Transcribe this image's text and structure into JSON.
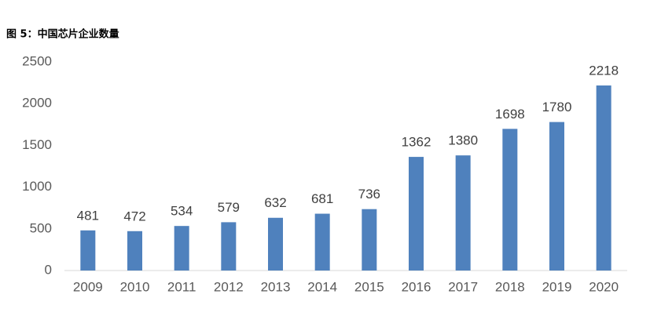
{
  "chart_data": {
    "type": "bar",
    "title": "图 5：中国芯片企业数量",
    "categories": [
      "2009",
      "2010",
      "2011",
      "2012",
      "2013",
      "2014",
      "2015",
      "2016",
      "2017",
      "2018",
      "2019",
      "2020"
    ],
    "values": [
      481,
      472,
      534,
      579,
      632,
      681,
      736,
      1362,
      1380,
      1698,
      1780,
      2218
    ],
    "color": "#4f81bd",
    "ylim": [
      0,
      2500
    ],
    "yticks": [
      0,
      500,
      1000,
      1500,
      2000,
      2500
    ],
    "grid": false
  }
}
